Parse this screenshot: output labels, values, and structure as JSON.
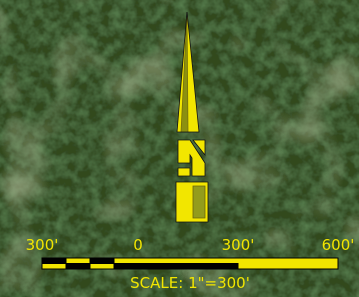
{
  "scale_bar": {
    "labels": [
      "300'",
      "0",
      "300'",
      "600'"
    ],
    "caption": "SCALE: 1\"=300'"
  }
}
